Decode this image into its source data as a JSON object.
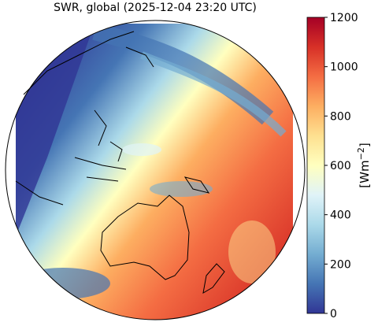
{
  "title": "SWR, global (2025-12-04 23:20 UTC)",
  "colorbar": {
    "label_base": "[Wm",
    "label_sup": "−2",
    "label_end": "]",
    "lim": [
      0,
      1200
    ],
    "ticks": [
      0,
      200,
      400,
      600,
      800,
      1000,
      1200
    ],
    "colors": [
      "#313695",
      "#4575b4",
      "#74add1",
      "#abd9e9",
      "#e0f3f8",
      "#ffffbf",
      "#fee090",
      "#fdae61",
      "#f46d43",
      "#d73027",
      "#a50026"
    ]
  }
}
